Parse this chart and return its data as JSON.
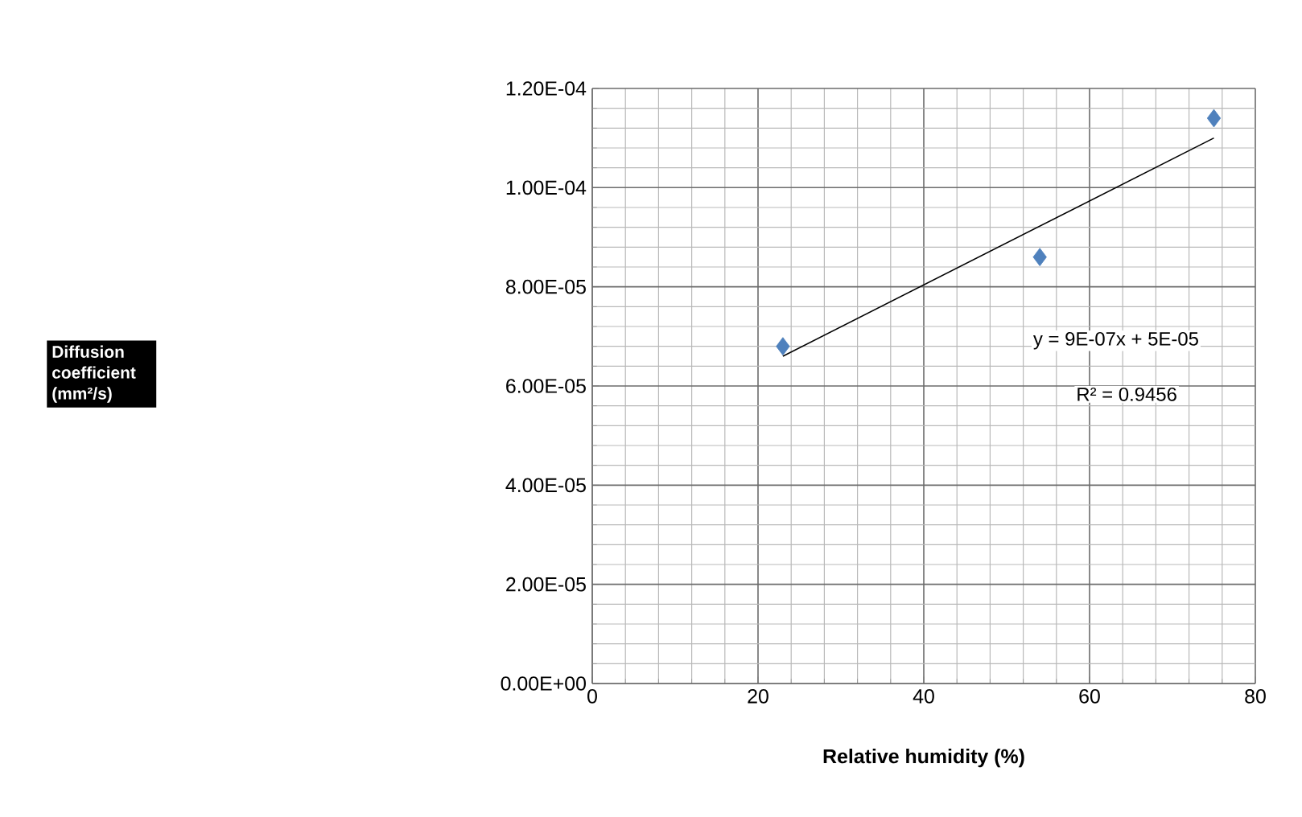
{
  "chart_data": {
    "type": "scatter",
    "xlabel": "Relative humidity (%)",
    "xlim": [
      0,
      80
    ],
    "xticks": [
      0,
      20,
      40,
      60,
      80
    ],
    "ylim": [
      0,
      0.00012
    ],
    "yticks": [
      {
        "value": 0,
        "label": "0.00E+00"
      },
      {
        "value": 2e-05,
        "label": "2.00E-05"
      },
      {
        "value": 4e-05,
        "label": "4.00E-05"
      },
      {
        "value": 6e-05,
        "label": "6.00E-05"
      },
      {
        "value": 8e-05,
        "label": "8.00E-05"
      },
      {
        "value": 0.0001,
        "label": "1.00E-04"
      },
      {
        "value": 0.00012,
        "label": "1.20E-04"
      }
    ],
    "grid": true,
    "series": [
      {
        "color": "#4f81bd",
        "marker": "diamond",
        "x": [
          23,
          54,
          75
        ],
        "values": [
          6.8e-05,
          8.6e-05,
          0.000114
        ]
      },
      {
        "type": "line",
        "color": "#000000",
        "marker": "none",
        "x": [
          23,
          75
        ],
        "values": [
          6.6e-05,
          0.00011
        ]
      }
    ],
    "annotations": [
      "Diffusion coefficient (mm²/s)",
      "y = 9E-07x + 5E-05",
      "R² = 0.9456"
    ]
  }
}
